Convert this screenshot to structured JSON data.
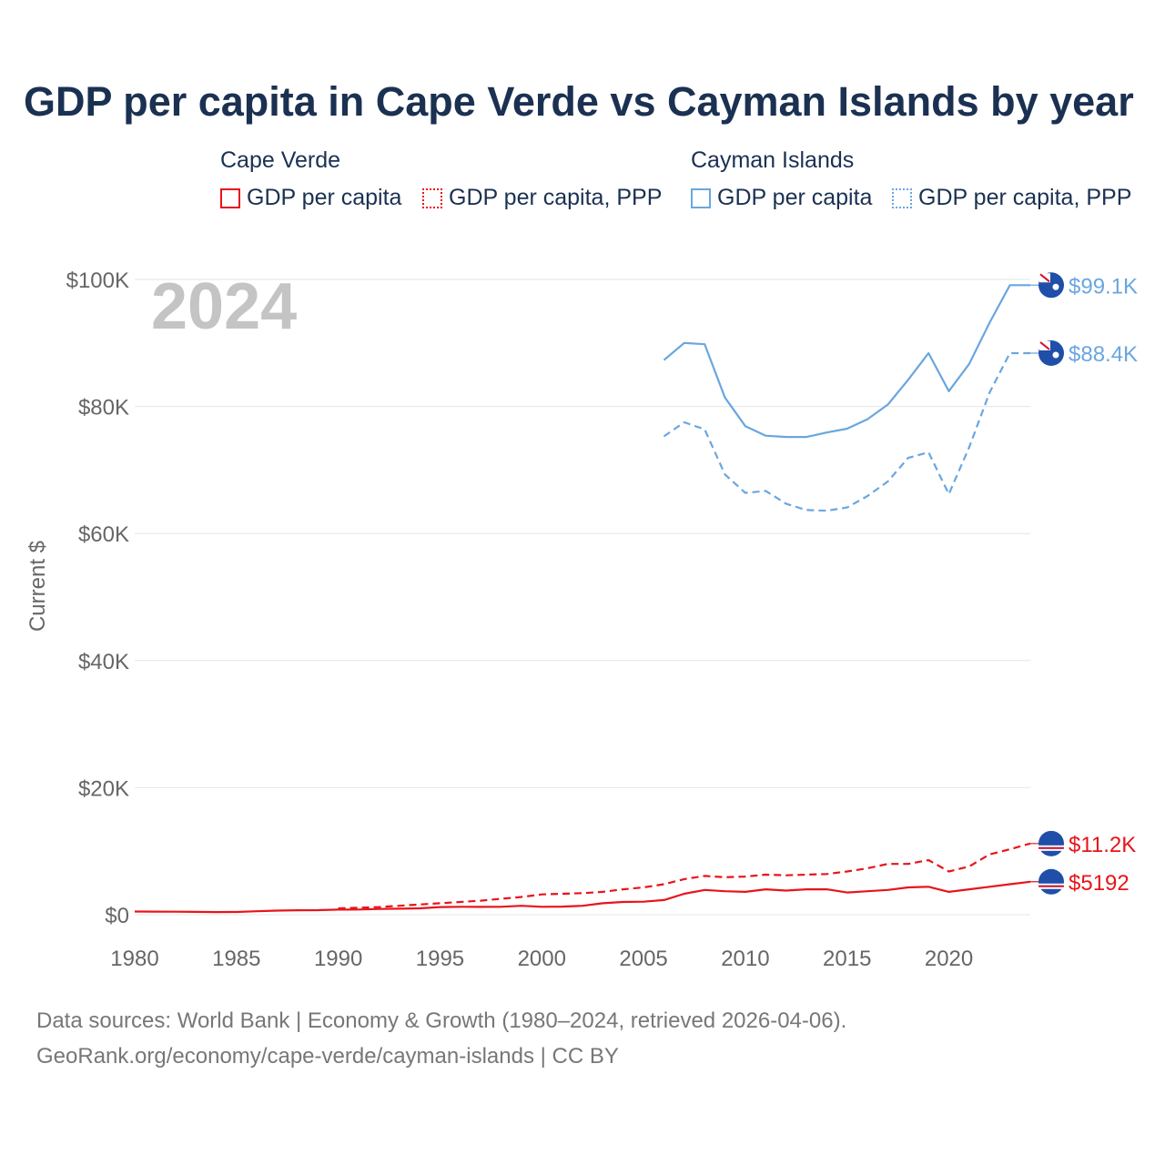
{
  "title": "GDP per capita in Cape Verde vs Cayman Islands by year",
  "year_label": "2024",
  "legend": {
    "groups": [
      {
        "country": "Cape Verde",
        "color": "#e8141a",
        "items": [
          {
            "label": "GDP per capita",
            "style": "solid"
          },
          {
            "label": "GDP per capita, PPP",
            "style": "dotted"
          }
        ]
      },
      {
        "country": "Cayman Islands",
        "color": "#6aa6e0",
        "items": [
          {
            "label": "GDP per capita",
            "style": "solid"
          },
          {
            "label": "GDP per capita, PPP",
            "style": "dotted"
          }
        ]
      }
    ]
  },
  "footer": {
    "line1": "Data sources: World Bank | Economy & Growth (1980–2024, retrieved 2026-04-06).",
    "line2": "GeoRank.org/economy/cape-verde/cayman-islands | CC BY"
  },
  "chart_data": {
    "type": "line",
    "ylabel": "Current $",
    "xlim": [
      1980,
      2024
    ],
    "ylim": [
      0,
      100000
    ],
    "x_ticks": [
      1980,
      1985,
      1990,
      1995,
      2000,
      2005,
      2010,
      2015,
      2020
    ],
    "y_ticks": [
      {
        "value": 0,
        "label": "$0"
      },
      {
        "value": 20000,
        "label": "$20K"
      },
      {
        "value": 40000,
        "label": "$40K"
      },
      {
        "value": 60000,
        "label": "$60K"
      },
      {
        "value": 80000,
        "label": "$80K"
      },
      {
        "value": 100000,
        "label": "$100K"
      }
    ],
    "series": [
      {
        "name": "Cayman Islands GDP per capita",
        "country": "Cayman Islands",
        "color": "#6aa6e0",
        "dash": "solid",
        "end_label": "$99.1K",
        "x": [
          2006,
          2007,
          2008,
          2009,
          2010,
          2011,
          2012,
          2013,
          2014,
          2015,
          2016,
          2017,
          2018,
          2019,
          2020,
          2021,
          2022,
          2023,
          2024
        ],
        "values": [
          87300,
          90000,
          89800,
          81400,
          76900,
          75400,
          75200,
          75200,
          75900,
          76500,
          78000,
          80300,
          84200,
          88400,
          82400,
          86700,
          93200,
          99100,
          99100
        ]
      },
      {
        "name": "Cayman Islands GDP per capita, PPP",
        "country": "Cayman Islands",
        "color": "#6aa6e0",
        "dash": "dashed",
        "end_label": "$88.4K",
        "x": [
          2006,
          2007,
          2008,
          2009,
          2010,
          2011,
          2012,
          2013,
          2014,
          2015,
          2016,
          2017,
          2018,
          2019,
          2020,
          2021,
          2022,
          2023,
          2024
        ],
        "values": [
          75300,
          77500,
          76400,
          69300,
          66400,
          66700,
          64700,
          63700,
          63600,
          64100,
          65900,
          68200,
          71900,
          72800,
          66200,
          73600,
          82200,
          88400,
          88400
        ]
      },
      {
        "name": "Cape Verde GDP per capita, PPP",
        "country": "Cape Verde",
        "color": "#e8141a",
        "dash": "dashed",
        "end_label": "$11.2K",
        "x": [
          1990,
          1991,
          1992,
          1993,
          1994,
          1995,
          1996,
          1997,
          1998,
          1999,
          2000,
          2001,
          2002,
          2003,
          2004,
          2005,
          2006,
          2007,
          2008,
          2009,
          2010,
          2011,
          2012,
          2013,
          2014,
          2015,
          2016,
          2017,
          2018,
          2019,
          2020,
          2021,
          2022,
          2023,
          2024
        ],
        "values": [
          1000,
          1100,
          1200,
          1400,
          1600,
          1800,
          2000,
          2200,
          2500,
          2800,
          3200,
          3300,
          3400,
          3600,
          4000,
          4300,
          4800,
          5600,
          6100,
          5900,
          6000,
          6300,
          6200,
          6300,
          6400,
          6800,
          7300,
          8000,
          8000,
          8600,
          6800,
          7600,
          9500,
          10300,
          11200
        ]
      },
      {
        "name": "Cape Verde GDP per capita",
        "country": "Cape Verde",
        "color": "#e8141a",
        "dash": "solid",
        "end_label": "$5192",
        "x": [
          1980,
          1981,
          1982,
          1983,
          1984,
          1985,
          1986,
          1987,
          1988,
          1989,
          1990,
          1991,
          1992,
          1993,
          1994,
          1995,
          1996,
          1997,
          1998,
          1999,
          2000,
          2001,
          2002,
          2003,
          2004,
          2005,
          2006,
          2007,
          2008,
          2009,
          2010,
          2011,
          2012,
          2013,
          2014,
          2015,
          2016,
          2017,
          2018,
          2019,
          2020,
          2021,
          2022,
          2023,
          2024
        ],
        "values": [
          500,
          480,
          470,
          440,
          420,
          430,
          550,
          650,
          700,
          720,
          800,
          810,
          900,
          950,
          1000,
          1200,
          1250,
          1230,
          1250,
          1400,
          1250,
          1280,
          1400,
          1800,
          2000,
          2050,
          2300,
          3300,
          3900,
          3700,
          3600,
          4000,
          3800,
          4000,
          4000,
          3500,
          3700,
          3900,
          4300,
          4400,
          3600,
          4000,
          4400,
          4800,
          5192
        ]
      }
    ]
  }
}
